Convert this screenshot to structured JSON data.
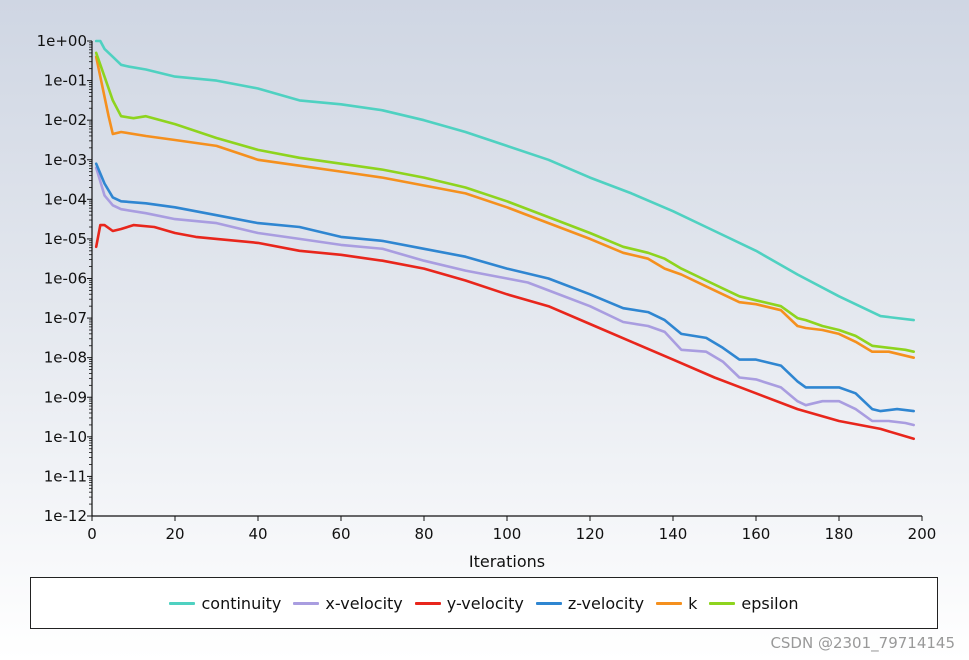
{
  "chart_data": {
    "type": "line",
    "title": "",
    "xlabel": "Iterations",
    "ylabel": "",
    "yscale": "log",
    "xlim": [
      0,
      200
    ],
    "ylim_exp": [
      -12,
      0
    ],
    "x_ticks": [
      0,
      20,
      40,
      60,
      80,
      100,
      120,
      140,
      160,
      180,
      200
    ],
    "x_tick_labels": [
      "0",
      "20",
      "40",
      "60",
      "80",
      "100",
      "120",
      "140",
      "160",
      "180",
      "200"
    ],
    "y_tick_labels": [
      "1e+00",
      "1e-01",
      "1e-02",
      "1e-03",
      "1e-04",
      "1e-05",
      "1e-06",
      "1e-07",
      "1e-08",
      "1e-09",
      "1e-10",
      "1e-11",
      "1e-12"
    ],
    "legend_position": "bottom",
    "series": [
      {
        "name": "continuity",
        "color": "#4fd1c1",
        "log10_points": [
          [
            1,
            0
          ],
          [
            2,
            0
          ],
          [
            3,
            -0.2
          ],
          [
            5,
            -0.4
          ],
          [
            7,
            -0.6
          ],
          [
            9,
            -0.65
          ],
          [
            13,
            -0.72
          ],
          [
            20,
            -0.9
          ],
          [
            30,
            -1.0
          ],
          [
            40,
            -1.2
          ],
          [
            50,
            -1.5
          ],
          [
            60,
            -1.6
          ],
          [
            70,
            -1.75
          ],
          [
            80,
            -2.0
          ],
          [
            90,
            -2.3
          ],
          [
            100,
            -2.65
          ],
          [
            110,
            -3.0
          ],
          [
            120,
            -3.45
          ],
          [
            130,
            -3.85
          ],
          [
            140,
            -4.3
          ],
          [
            150,
            -4.8
          ],
          [
            160,
            -5.3
          ],
          [
            170,
            -5.9
          ],
          [
            180,
            -6.45
          ],
          [
            190,
            -6.95
          ],
          [
            198,
            -7.05
          ]
        ]
      },
      {
        "name": "x-velocity",
        "color": "#a99de0",
        "log10_points": [
          [
            1,
            -3.2
          ],
          [
            3,
            -3.9
          ],
          [
            5,
            -4.15
          ],
          [
            7,
            -4.25
          ],
          [
            13,
            -4.35
          ],
          [
            20,
            -4.5
          ],
          [
            30,
            -4.6
          ],
          [
            40,
            -4.85
          ],
          [
            50,
            -5.0
          ],
          [
            60,
            -5.15
          ],
          [
            70,
            -5.25
          ],
          [
            80,
            -5.55
          ],
          [
            90,
            -5.8
          ],
          [
            100,
            -6.0
          ],
          [
            105,
            -6.1
          ],
          [
            110,
            -6.3
          ],
          [
            120,
            -6.7
          ],
          [
            128,
            -7.1
          ],
          [
            134,
            -7.2
          ],
          [
            138,
            -7.35
          ],
          [
            142,
            -7.8
          ],
          [
            148,
            -7.85
          ],
          [
            152,
            -8.1
          ],
          [
            156,
            -8.5
          ],
          [
            160,
            -8.55
          ],
          [
            166,
            -8.75
          ],
          [
            170,
            -9.1
          ],
          [
            172,
            -9.2
          ],
          [
            176,
            -9.1
          ],
          [
            180,
            -9.1
          ],
          [
            184,
            -9.3
          ],
          [
            188,
            -9.6
          ],
          [
            192,
            -9.6
          ],
          [
            196,
            -9.65
          ],
          [
            198,
            -9.7
          ]
        ]
      },
      {
        "name": "y-velocity",
        "color": "#e8261c",
        "log10_points": [
          [
            1,
            -5.2
          ],
          [
            2,
            -4.65
          ],
          [
            3,
            -4.65
          ],
          [
            5,
            -4.8
          ],
          [
            7,
            -4.75
          ],
          [
            10,
            -4.65
          ],
          [
            15,
            -4.7
          ],
          [
            20,
            -4.85
          ],
          [
            25,
            -4.95
          ],
          [
            30,
            -5.0
          ],
          [
            40,
            -5.1
          ],
          [
            50,
            -5.3
          ],
          [
            60,
            -5.4
          ],
          [
            70,
            -5.55
          ],
          [
            80,
            -5.75
          ],
          [
            90,
            -6.05
          ],
          [
            100,
            -6.4
          ],
          [
            110,
            -6.7
          ],
          [
            120,
            -7.15
          ],
          [
            130,
            -7.6
          ],
          [
            140,
            -8.05
          ],
          [
            150,
            -8.5
          ],
          [
            160,
            -8.9
          ],
          [
            170,
            -9.3
          ],
          [
            180,
            -9.6
          ],
          [
            190,
            -9.8
          ],
          [
            198,
            -10.05
          ]
        ]
      },
      {
        "name": "z-velocity",
        "color": "#2f86d1",
        "log10_points": [
          [
            1,
            -3.1
          ],
          [
            3,
            -3.6
          ],
          [
            5,
            -3.95
          ],
          [
            7,
            -4.05
          ],
          [
            13,
            -4.1
          ],
          [
            20,
            -4.2
          ],
          [
            30,
            -4.4
          ],
          [
            40,
            -4.6
          ],
          [
            50,
            -4.7
          ],
          [
            60,
            -4.95
          ],
          [
            70,
            -5.05
          ],
          [
            80,
            -5.25
          ],
          [
            90,
            -5.45
          ],
          [
            100,
            -5.75
          ],
          [
            110,
            -6.0
          ],
          [
            120,
            -6.4
          ],
          [
            128,
            -6.75
          ],
          [
            134,
            -6.85
          ],
          [
            138,
            -7.05
          ],
          [
            142,
            -7.4
          ],
          [
            148,
            -7.5
          ],
          [
            152,
            -7.75
          ],
          [
            156,
            -8.05
          ],
          [
            160,
            -8.05
          ],
          [
            166,
            -8.2
          ],
          [
            170,
            -8.6
          ],
          [
            172,
            -8.75
          ],
          [
            176,
            -8.75
          ],
          [
            180,
            -8.75
          ],
          [
            184,
            -8.9
          ],
          [
            188,
            -9.3
          ],
          [
            190,
            -9.35
          ],
          [
            194,
            -9.3
          ],
          [
            198,
            -9.35
          ]
        ]
      },
      {
        "name": "k",
        "color": "#f5901e",
        "log10_points": [
          [
            1,
            -0.4
          ],
          [
            2,
            -0.9
          ],
          [
            4,
            -1.9
          ],
          [
            5,
            -2.35
          ],
          [
            7,
            -2.3
          ],
          [
            13,
            -2.4
          ],
          [
            20,
            -2.5
          ],
          [
            30,
            -2.65
          ],
          [
            40,
            -3.0
          ],
          [
            50,
            -3.15
          ],
          [
            60,
            -3.3
          ],
          [
            70,
            -3.45
          ],
          [
            80,
            -3.65
          ],
          [
            90,
            -3.85
          ],
          [
            100,
            -4.2
          ],
          [
            110,
            -4.6
          ],
          [
            120,
            -5.0
          ],
          [
            128,
            -5.35
          ],
          [
            134,
            -5.5
          ],
          [
            138,
            -5.75
          ],
          [
            142,
            -5.9
          ],
          [
            148,
            -6.2
          ],
          [
            152,
            -6.4
          ],
          [
            156,
            -6.6
          ],
          [
            160,
            -6.65
          ],
          [
            166,
            -6.8
          ],
          [
            170,
            -7.2
          ],
          [
            172,
            -7.25
          ],
          [
            176,
            -7.3
          ],
          [
            180,
            -7.4
          ],
          [
            184,
            -7.6
          ],
          [
            188,
            -7.85
          ],
          [
            192,
            -7.85
          ],
          [
            196,
            -7.95
          ],
          [
            198,
            -8.0
          ]
        ]
      },
      {
        "name": "epsilon",
        "color": "#8ed41e",
        "log10_points": [
          [
            1,
            -0.3
          ],
          [
            3,
            -0.9
          ],
          [
            5,
            -1.5
          ],
          [
            7,
            -1.9
          ],
          [
            10,
            -1.95
          ],
          [
            13,
            -1.9
          ],
          [
            20,
            -2.1
          ],
          [
            30,
            -2.45
          ],
          [
            40,
            -2.75
          ],
          [
            50,
            -2.95
          ],
          [
            60,
            -3.1
          ],
          [
            70,
            -3.25
          ],
          [
            80,
            -3.45
          ],
          [
            90,
            -3.7
          ],
          [
            100,
            -4.05
          ],
          [
            110,
            -4.45
          ],
          [
            120,
            -4.85
          ],
          [
            128,
            -5.2
          ],
          [
            134,
            -5.35
          ],
          [
            138,
            -5.5
          ],
          [
            142,
            -5.75
          ],
          [
            148,
            -6.05
          ],
          [
            152,
            -6.25
          ],
          [
            156,
            -6.45
          ],
          [
            160,
            -6.55
          ],
          [
            166,
            -6.7
          ],
          [
            170,
            -7.0
          ],
          [
            172,
            -7.05
          ],
          [
            176,
            -7.2
          ],
          [
            180,
            -7.3
          ],
          [
            184,
            -7.45
          ],
          [
            188,
            -7.7
          ],
          [
            192,
            -7.75
          ],
          [
            196,
            -7.8
          ],
          [
            198,
            -7.85
          ]
        ]
      }
    ]
  },
  "watermark": "CSDN @2301_79714145"
}
